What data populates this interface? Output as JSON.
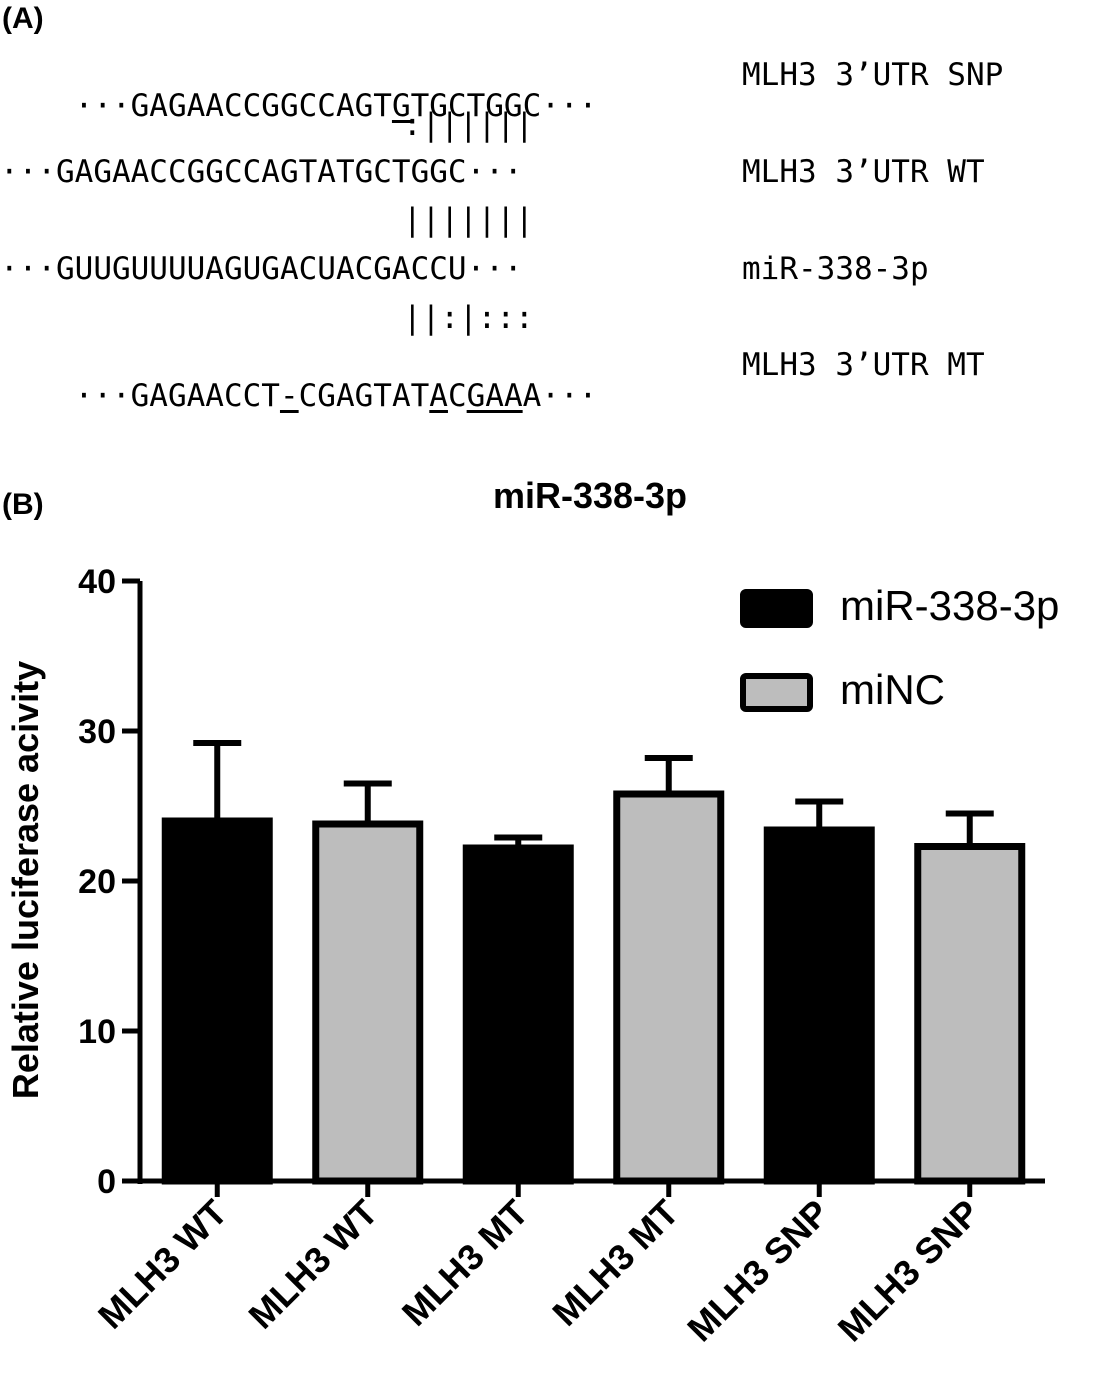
{
  "panel_a": {
    "label": "(A)",
    "rows": [
      {
        "seq": "···GAGAACCGGCCAGTGTGCTGGC···",
        "name": "MLH3 3’UTR SNP",
        "pairs": null
      },
      {
        "seq": "···GAGAACCGGCCAGTATGCTGGC···",
        "name": "MLH3 3’UTR WT",
        "pairs": ":||||||"
      },
      {
        "seq": "···GUUGUUUUAGUGACUACGACCU···",
        "name": "miR-338-3p",
        "pairs": "|||||||"
      },
      {
        "seq": "···GAGAACCT-CGAGTATACGAAA···",
        "name": "MLH3 3’UTR MT",
        "pairs": "||:|:::"
      }
    ]
  },
  "panel_b": {
    "label": "(B)"
  },
  "chart_data": {
    "type": "bar",
    "title": "miR-338-3p",
    "xlabel": "",
    "ylabel": "Relative luciferase acivity",
    "ylim": [
      0,
      40
    ],
    "yticks": [
      0,
      10,
      20,
      30,
      40
    ],
    "categories": [
      "MLH3 WT",
      "MLH3 WT",
      "MLH3 MT",
      "MLH3 MT",
      "MLH3 SNP",
      "MLH3 SNP"
    ],
    "values": [
      24.0,
      23.8,
      22.2,
      25.8,
      23.4,
      22.3
    ],
    "errors": [
      5.2,
      2.7,
      0.7,
      2.4,
      1.9,
      2.2
    ],
    "groups": [
      "miR-338-3p",
      "miNC",
      "miR-338-3p",
      "miNC",
      "miR-338-3p",
      "miNC"
    ],
    "legend": [
      {
        "name": "miR-338-3p",
        "color": "#000000"
      },
      {
        "name": "miNC",
        "color": "#bdbdbd"
      }
    ],
    "legend_position": "top-right",
    "grid": false
  }
}
